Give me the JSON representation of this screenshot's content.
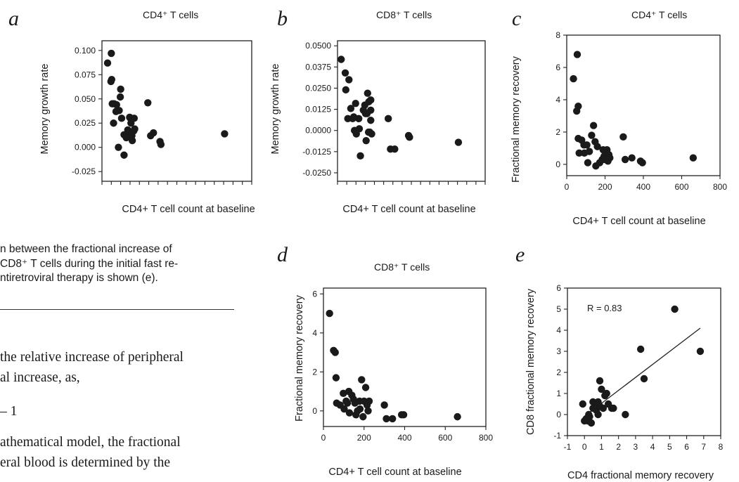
{
  "caption_lines": [
    "n between the fractional increase of",
    " CD8⁺ T cells during the initial fast re-",
    "ntiretroviral therapy is shown (e)."
  ],
  "body_lines": [
    "the relative increase of peripheral",
    "al increase, as,",
    "– 1",
    "athematical model, the fractional",
    "eral blood is determined by the"
  ],
  "chart_data": [
    {
      "panel": "a",
      "type": "scatter",
      "title": "CD4⁺ T cells",
      "xlabel": "CD4+ T cell count at baseline",
      "ylabel": "Memory growth rate",
      "xlim": [
        0,
        800
      ],
      "ylim": [
        -0.035,
        0.11
      ],
      "xticks": [
        0,
        50,
        100,
        150,
        200,
        250,
        300,
        350,
        400,
        450,
        500,
        550,
        600,
        650,
        700,
        750,
        800
      ],
      "xtick_labels": false,
      "yticks": [
        -0.025,
        0.0,
        0.025,
        0.05,
        0.075,
        0.1
      ],
      "ytick_labels": [
        "-0.025",
        "0.000",
        "0.025",
        "0.050",
        "0.075",
        "0.100"
      ],
      "points": [
        [
          30,
          0.087
        ],
        [
          50,
          0.097
        ],
        [
          48,
          0.068
        ],
        [
          52,
          0.07
        ],
        [
          55,
          0.045
        ],
        [
          65,
          0.045
        ],
        [
          62,
          0.025
        ],
        [
          78,
          0.044
        ],
        [
          75,
          0.037
        ],
        [
          100,
          0.06
        ],
        [
          98,
          0.052
        ],
        [
          92,
          0.038
        ],
        [
          105,
          0.03
        ],
        [
          88,
          0.0
        ],
        [
          118,
          -0.008
        ],
        [
          130,
          0.01
        ],
        [
          118,
          0.013
        ],
        [
          138,
          0.018
        ],
        [
          148,
          0.031
        ],
        [
          152,
          0.03
        ],
        [
          155,
          0.025
        ],
        [
          160,
          0.012
        ],
        [
          162,
          0.007
        ],
        [
          172,
          0.03
        ],
        [
          175,
          0.019
        ],
        [
          170,
          0.017
        ],
        [
          150,
          0.015
        ],
        [
          245,
          0.046
        ],
        [
          260,
          0.012
        ],
        [
          275,
          0.015
        ],
        [
          310,
          0.006
        ],
        [
          315,
          0.003
        ],
        [
          655,
          0.014
        ]
      ]
    },
    {
      "panel": "b",
      "type": "scatter",
      "title": "CD8⁺ T cells",
      "xlabel": "CD4+ T cell count at baseline",
      "ylabel": "Memory growth rate",
      "xlim": [
        0,
        800
      ],
      "ylim": [
        -0.03,
        0.053
      ],
      "xticks": [
        0,
        50,
        100,
        150,
        200,
        250,
        300,
        350,
        400,
        450,
        500,
        550,
        600,
        650,
        700,
        750,
        800
      ],
      "xtick_labels": false,
      "yticks": [
        -0.025,
        -0.0125,
        0.0,
        0.0125,
        0.025,
        0.0375,
        0.05
      ],
      "ytick_labels": [
        "-0.0250",
        "-0.0125",
        "0.0000",
        "0.0125",
        "0.0250",
        "0.0375",
        "0.0500"
      ],
      "points": [
        [
          20,
          0.042
        ],
        [
          42,
          0.034
        ],
        [
          45,
          0.024
        ],
        [
          62,
          0.03
        ],
        [
          56,
          0.007
        ],
        [
          82,
          0.007
        ],
        [
          72,
          0.013
        ],
        [
          98,
          0.016
        ],
        [
          88,
          0.008
        ],
        [
          102,
          -0.002
        ],
        [
          92,
          0.0
        ],
        [
          118,
          0.001
        ],
        [
          115,
          0.007
        ],
        [
          124,
          -0.015
        ],
        [
          140,
          0.012
        ],
        [
          148,
          0.015
        ],
        [
          152,
          0.01
        ],
        [
          160,
          0.01
        ],
        [
          163,
          0.022
        ],
        [
          170,
          0.017
        ],
        [
          168,
          -0.001
        ],
        [
          180,
          0.012
        ],
        [
          180,
          0.018
        ],
        [
          155,
          -0.006
        ],
        [
          185,
          -0.002
        ],
        [
          175,
          -0.001
        ],
        [
          180,
          0.006
        ],
        [
          275,
          0.007
        ],
        [
          287,
          -0.011
        ],
        [
          310,
          -0.011
        ],
        [
          385,
          -0.003
        ],
        [
          390,
          -0.004
        ],
        [
          655,
          -0.007
        ]
      ]
    },
    {
      "panel": "c",
      "type": "scatter",
      "title": "CD4⁺ T cells",
      "xlabel": "CD4+ T cell count at baseline",
      "ylabel": "Fractional memory recovery",
      "xlim": [
        0,
        800
      ],
      "ylim": [
        -0.7,
        8
      ],
      "xticks": [
        0,
        200,
        400,
        600,
        800
      ],
      "xtick_labels": [
        "0",
        "200",
        "400",
        "600",
        "800"
      ],
      "yticks": [
        0,
        2,
        4,
        6,
        8
      ],
      "ytick_labels": [
        "0",
        "2",
        "4",
        "6",
        "8"
      ],
      "points": [
        [
          35,
          5.3
        ],
        [
          55,
          6.8
        ],
        [
          52,
          3.3
        ],
        [
          60,
          3.6
        ],
        [
          60,
          1.6
        ],
        [
          65,
          0.7
        ],
        [
          78,
          1.5
        ],
        [
          90,
          1.2
        ],
        [
          92,
          0.7
        ],
        [
          105,
          1.2
        ],
        [
          110,
          0.1
        ],
        [
          118,
          0.8
        ],
        [
          130,
          1.8
        ],
        [
          140,
          2.4
        ],
        [
          148,
          1.4
        ],
        [
          152,
          -0.1
        ],
        [
          160,
          1.1
        ],
        [
          172,
          0.1
        ],
        [
          185,
          0.3
        ],
        [
          190,
          0.9
        ],
        [
          195,
          0.5
        ],
        [
          200,
          0.3
        ],
        [
          210,
          0.9
        ],
        [
          220,
          0.6
        ],
        [
          215,
          0.2
        ],
        [
          225,
          0.4
        ],
        [
          295,
          1.7
        ],
        [
          305,
          0.3
        ],
        [
          340,
          0.4
        ],
        [
          385,
          0.2
        ],
        [
          395,
          0.1
        ],
        [
          660,
          0.4
        ]
      ]
    },
    {
      "panel": "d",
      "type": "scatter",
      "title": "CD8⁺ T cells",
      "xlabel": "CD4+ T cell count at baseline",
      "ylabel": "Fractional memory recovery",
      "xlim": [
        0,
        800
      ],
      "ylim": [
        -0.8,
        6.3
      ],
      "xticks": [
        0,
        200,
        400,
        600,
        800
      ],
      "xtick_labels": [
        "0",
        "200",
        "400",
        "600",
        "800"
      ],
      "yticks": [
        0,
        2,
        4,
        6
      ],
      "ytick_labels": [
        "0",
        "2",
        "4",
        "6"
      ],
      "points": [
        [
          30,
          5.0
        ],
        [
          50,
          3.1
        ],
        [
          58,
          3.0
        ],
        [
          62,
          1.7
        ],
        [
          65,
          0.4
        ],
        [
          82,
          0.3
        ],
        [
          98,
          0.9
        ],
        [
          102,
          0.1
        ],
        [
          112,
          0.5
        ],
        [
          118,
          0.4
        ],
        [
          125,
          1.0
        ],
        [
          128,
          -0.1
        ],
        [
          140,
          0.8
        ],
        [
          148,
          0.6
        ],
        [
          155,
          0.4
        ],
        [
          160,
          -0.2
        ],
        [
          168,
          0.0
        ],
        [
          180,
          0.1
        ],
        [
          178,
          0.5
        ],
        [
          188,
          1.6
        ],
        [
          195,
          -0.3
        ],
        [
          200,
          0.5
        ],
        [
          208,
          1.2
        ],
        [
          215,
          0.3
        ],
        [
          220,
          0.0
        ],
        [
          225,
          0.5
        ],
        [
          300,
          0.3
        ],
        [
          310,
          -0.4
        ],
        [
          340,
          -0.4
        ],
        [
          385,
          -0.2
        ],
        [
          395,
          -0.2
        ],
        [
          660,
          -0.3
        ]
      ]
    },
    {
      "panel": "e",
      "type": "scatter",
      "title": "",
      "xlabel": "CD4 fractional memory recovery",
      "ylabel": "CD8 fractional memory recovery",
      "annotation": "R = 0.83",
      "xlim": [
        -1,
        8
      ],
      "ylim": [
        -1,
        6
      ],
      "xticks": [
        -1,
        0,
        1,
        2,
        3,
        4,
        5,
        6,
        7,
        8
      ],
      "xtick_labels": [
        "-1",
        "0",
        "1",
        "2",
        "3",
        "4",
        "5",
        "6",
        "7",
        "8"
      ],
      "yticks": [
        -1,
        0,
        1,
        2,
        3,
        4,
        5,
        6
      ],
      "ytick_labels": [
        "-1",
        "0",
        "1",
        "2",
        "3",
        "4",
        "5",
        "6"
      ],
      "fit_line": [
        [
          0.3,
          0.1
        ],
        [
          6.8,
          4.1
        ]
      ],
      "points": [
        [
          -0.1,
          0.5
        ],
        [
          0.0,
          -0.3
        ],
        [
          0.1,
          -0.2
        ],
        [
          0.2,
          -0.3
        ],
        [
          0.25,
          0.0
        ],
        [
          0.4,
          -0.4
        ],
        [
          0.3,
          -0.1
        ],
        [
          0.5,
          0.3
        ],
        [
          0.5,
          0.6
        ],
        [
          0.6,
          0.5
        ],
        [
          0.7,
          0.2
        ],
        [
          0.8,
          0.0
        ],
        [
          0.9,
          0.4
        ],
        [
          0.8,
          0.6
        ],
        [
          0.9,
          1.6
        ],
        [
          1.0,
          1.2
        ],
        [
          1.1,
          0.3
        ],
        [
          1.2,
          0.9
        ],
        [
          1.3,
          1.0
        ],
        [
          1.4,
          0.5
        ],
        [
          1.6,
          0.3
        ],
        [
          1.7,
          0.3
        ],
        [
          2.4,
          0.0
        ],
        [
          3.3,
          3.1
        ],
        [
          3.5,
          1.7
        ],
        [
          5.3,
          5.0
        ],
        [
          6.8,
          3.0
        ]
      ]
    }
  ]
}
